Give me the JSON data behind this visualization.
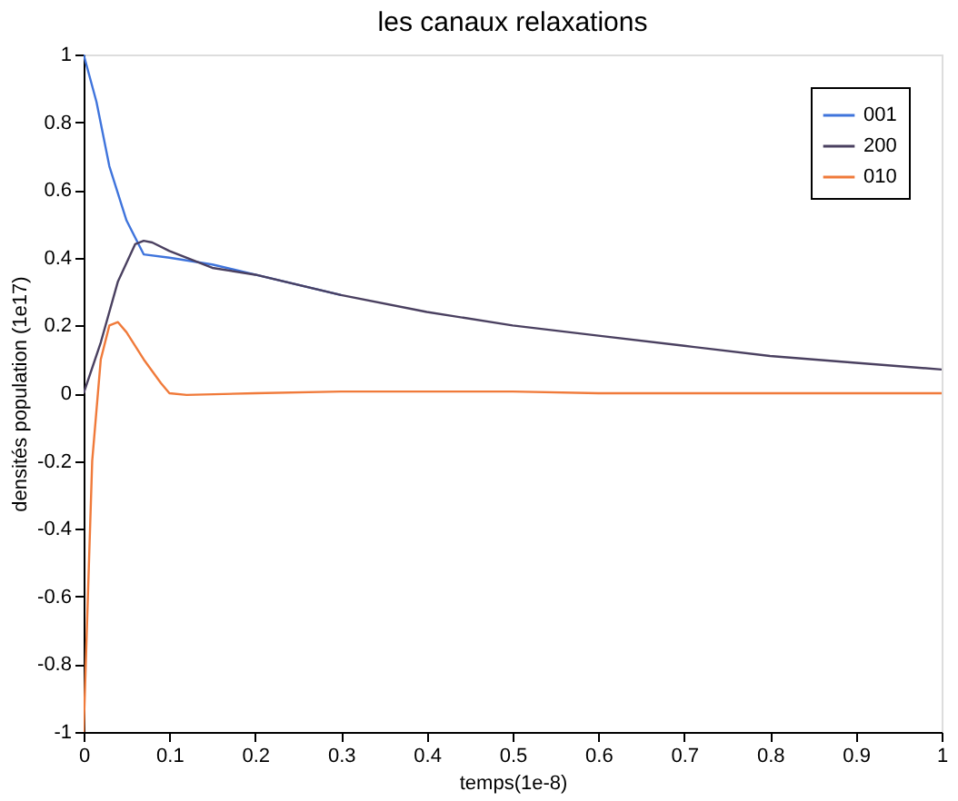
{
  "chart_data": {
    "type": "line",
    "title": "les canaux relaxations",
    "xlabel": "temps(1e-8)",
    "ylabel": "densités population (1e17)",
    "xlim": [
      0,
      1
    ],
    "xticks": [
      0,
      0.1,
      0.2,
      0.3,
      0.4,
      0.5,
      0.6,
      0.7,
      0.8,
      0.9,
      1
    ],
    "ylim": [
      -1,
      1
    ],
    "yticks": [
      -1,
      -0.8,
      -0.6,
      -0.4,
      -0.2,
      0,
      0.2,
      0.4,
      0.6,
      0.8,
      1
    ],
    "grid": false,
    "legend": "top right",
    "marker": "none",
    "line_style": "solid",
    "series": [
      {
        "name": "001",
        "color": "#3f74dc",
        "x": [
          0,
          0.015,
          0.03,
          0.05,
          0.07,
          0.1,
          0.15,
          0.2,
          0.3
        ],
        "values": [
          1,
          0.86,
          0.67,
          0.51,
          0.41,
          0.4,
          0.38,
          0.35,
          0.29
        ]
      },
      {
        "name": "200",
        "color": "#4a4060",
        "x": [
          0,
          0.02,
          0.04,
          0.06,
          0.07,
          0.08,
          0.1,
          0.15,
          0.2,
          0.3,
          0.4,
          0.5,
          0.6,
          0.7,
          0.8,
          0.9,
          1
        ],
        "values": [
          0,
          0.15,
          0.33,
          0.44,
          0.45,
          0.445,
          0.42,
          0.37,
          0.35,
          0.29,
          0.24,
          0.2,
          0.17,
          0.14,
          0.11,
          0.09,
          0.07
        ]
      },
      {
        "name": "010",
        "color": "#f07a3a",
        "x": [
          0,
          0.005,
          0.01,
          0.02,
          0.03,
          0.04,
          0.05,
          0.07,
          0.09,
          0.1,
          0.12,
          0.2,
          0.3,
          0.5,
          0.6,
          1
        ],
        "values": [
          -1,
          -0.6,
          -0.2,
          0.1,
          0.2,
          0.21,
          0.18,
          0.1,
          0.03,
          0,
          -0.005,
          0,
          0.005,
          0.005,
          0,
          0
        ]
      }
    ]
  }
}
